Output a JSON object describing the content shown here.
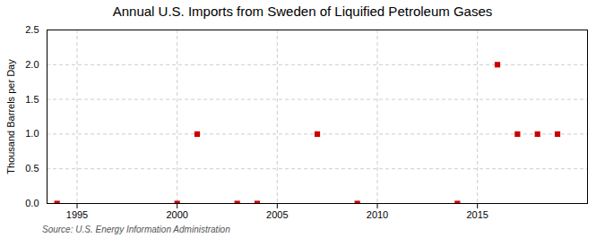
{
  "chart_data": {
    "type": "scatter",
    "title": "Annual U.S. Imports from Sweden of Liquified Petroleum Gases",
    "ylabel": "Thousand Barrels per Day",
    "source": "Source: U.S. Energy Information Administration",
    "x": [
      1994,
      2000,
      2001,
      2003,
      2004,
      2007,
      2009,
      2014,
      2016,
      2017,
      2018,
      2019
    ],
    "values": [
      0,
      0,
      1.0,
      0,
      0,
      1.0,
      0,
      0,
      2.0,
      1.0,
      1.0,
      1.0
    ],
    "color": "#cc0000",
    "marker": "square",
    "xlim": [
      1993.5,
      2020.5
    ],
    "ylim": [
      0,
      2.5
    ],
    "xticks": [
      1995,
      2000,
      2005,
      2010,
      2015
    ],
    "yticks": [
      {
        "value": 0.0,
        "label": "0.0"
      },
      0.5,
      {
        "value": 1.0,
        "label": "1.0"
      },
      1.5,
      {
        "value": 2.0,
        "label": "2.0"
      },
      2.5
    ],
    "grid": true
  }
}
